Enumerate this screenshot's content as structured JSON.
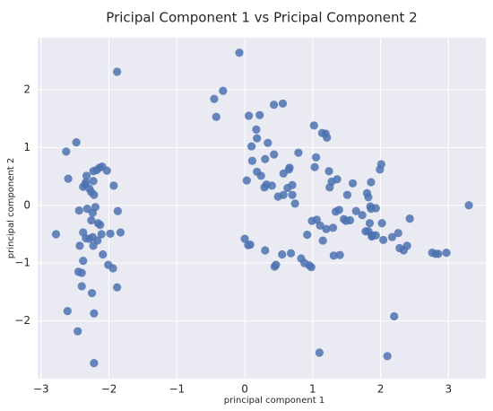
{
  "chart_data": {
    "type": "scatter",
    "title": "Pricipal Component 1 vs Pricipal Component 2",
    "xlabel": "principal component 1",
    "ylabel": "principal component 2",
    "xlim": [
      -3.05,
      3.55
    ],
    "ylim": [
      -3.0,
      2.9
    ],
    "xticks": [
      -3,
      -2,
      -1,
      0,
      1,
      2,
      3
    ],
    "yticks": [
      -2,
      -1,
      0,
      1,
      2
    ],
    "grid": true,
    "background_color": "#eaeaf2",
    "grid_color": "#ffffff",
    "marker_color": "#4c72b0",
    "series": [
      {
        "x": [
          -1.88,
          -2.33,
          -2.63,
          -2.48,
          -2.6,
          -2.18,
          -2.1,
          -2.14,
          -2.35,
          -2.29,
          -2.23,
          -2.26,
          -2.38,
          -2.22,
          -2.32,
          -2.2,
          -2.03,
          -2.34,
          -2.24,
          -2.44,
          -2.16,
          -1.93,
          -2.26,
          -2.13,
          -1.87,
          -1.98,
          -1.83,
          -2.43,
          -2.11,
          -2.38,
          -2.29,
          -2.17,
          -2.34,
          -2.78,
          -2.45,
          -2.4,
          -2.23,
          -2.09,
          -2.01,
          -1.94,
          -2.4,
          -2.38,
          -2.25,
          -2.22,
          -1.88,
          -2.22,
          -2.61,
          -2.46,
          -2.24,
          -2.23,
          -0.08,
          -0.32,
          -0.45,
          -0.42,
          0.06,
          0.22,
          0.43,
          0.56,
          0.17,
          0.18,
          0.34,
          0.3,
          0.43,
          0.1,
          0.11,
          0.18,
          0.24,
          0.32,
          0.4,
          0.49,
          0.57,
          0.63,
          0.7,
          0.03,
          0.29,
          0.7,
          0.74,
          1.03,
          1.05,
          0.79,
          0.66,
          0.65,
          0.57,
          1.02,
          1.14,
          1.19,
          1.21,
          1.24,
          1.28,
          1.36,
          1.51,
          1.59,
          1.8,
          1.86,
          1.82,
          1.86,
          1.85,
          1.93,
          1.99,
          2.01,
          2.02,
          1.25,
          1.34,
          1.39,
          1.46,
          1.49,
          1.55,
          1.64,
          1.73,
          1.84,
          1.78,
          1.82,
          1.87,
          1.88,
          1.93,
          2.04,
          2.17,
          2.26,
          2.28,
          2.34,
          2.39,
          2.43,
          2.76,
          2.81,
          2.85,
          2.97,
          3.3,
          2.2,
          2.1,
          1.1,
          0.95,
          0.88,
          0.83,
          1.31,
          1.4,
          1.3,
          1.15,
          0.98,
          0.46,
          0.44,
          0.55,
          0.0,
          0.08,
          0.3,
          0.05,
          0.68,
          0.92,
          0.99,
          1.06,
          1.11,
          1.2
        ],
        "y": [
          2.31,
          0.51,
          0.93,
          1.09,
          0.46,
          0.61,
          0.67,
          0.65,
          0.36,
          0.29,
          0.42,
          0.23,
          0.32,
          0.18,
          -0.06,
          -0.03,
          0.6,
          0.4,
          -0.13,
          -0.09,
          -0.31,
          0.34,
          -0.26,
          -0.34,
          -0.1,
          -0.49,
          -0.47,
          -0.7,
          -0.5,
          -0.47,
          -0.58,
          -0.61,
          -0.57,
          -0.5,
          -1.15,
          -1.17,
          -0.7,
          -0.85,
          -1.03,
          -1.09,
          -1.4,
          -0.96,
          -1.52,
          -1.87,
          -1.42,
          -2.73,
          -1.83,
          -2.18,
          -0.55,
          0.59,
          2.64,
          1.98,
          1.84,
          1.53,
          1.55,
          1.56,
          1.74,
          1.76,
          1.31,
          1.16,
          1.08,
          0.8,
          0.88,
          1.02,
          0.77,
          0.58,
          0.51,
          0.36,
          0.34,
          0.15,
          0.18,
          0.3,
          0.35,
          0.43,
          0.31,
          0.18,
          0.03,
          0.66,
          0.83,
          0.91,
          0.65,
          0.62,
          0.55,
          1.38,
          1.25,
          1.24,
          1.17,
          0.59,
          0.41,
          0.45,
          0.18,
          0.38,
          0.21,
          0.4,
          0.14,
          -0.06,
          -0.02,
          -0.05,
          0.62,
          0.71,
          -0.31,
          0.31,
          -0.11,
          -0.08,
          -0.24,
          -0.27,
          -0.26,
          -0.1,
          -0.17,
          -0.31,
          -0.45,
          -0.45,
          -0.54,
          -0.52,
          -0.52,
          -0.6,
          -0.55,
          -0.48,
          -0.74,
          -0.78,
          -0.7,
          -0.23,
          -0.82,
          -0.84,
          -0.84,
          -0.82,
          0.0,
          -1.92,
          -2.61,
          -2.55,
          -1.04,
          -1.0,
          -0.92,
          -0.87,
          -0.86,
          -0.39,
          -0.61,
          -1.07,
          -1.03,
          -1.06,
          -0.85,
          -0.58,
          -0.68,
          -0.78,
          -0.69,
          -0.83,
          -0.51,
          -0.27,
          -0.25,
          -0.35,
          -0.41
        ]
      }
    ]
  }
}
